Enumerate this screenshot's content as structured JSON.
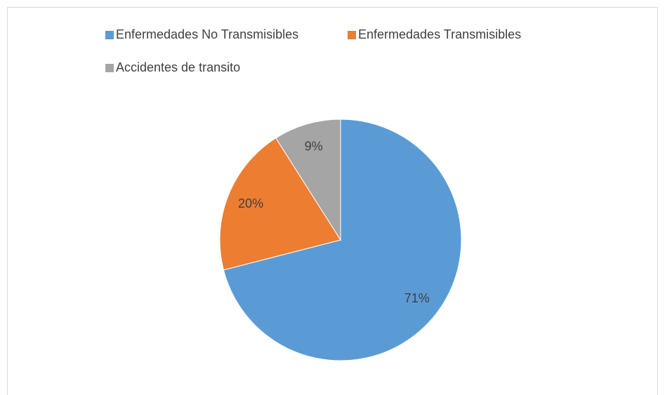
{
  "chart_data": {
    "type": "pie",
    "categories": [
      "Enfermedades No Transmisibles",
      "Enfermedades Transmisibles",
      "Accidentes de transito"
    ],
    "values": [
      71,
      20,
      9
    ],
    "value_labels": [
      "71%",
      "20%",
      "9%"
    ],
    "colors": [
      "#5b9bd5",
      "#ed7d31",
      "#a5a5a5"
    ]
  }
}
